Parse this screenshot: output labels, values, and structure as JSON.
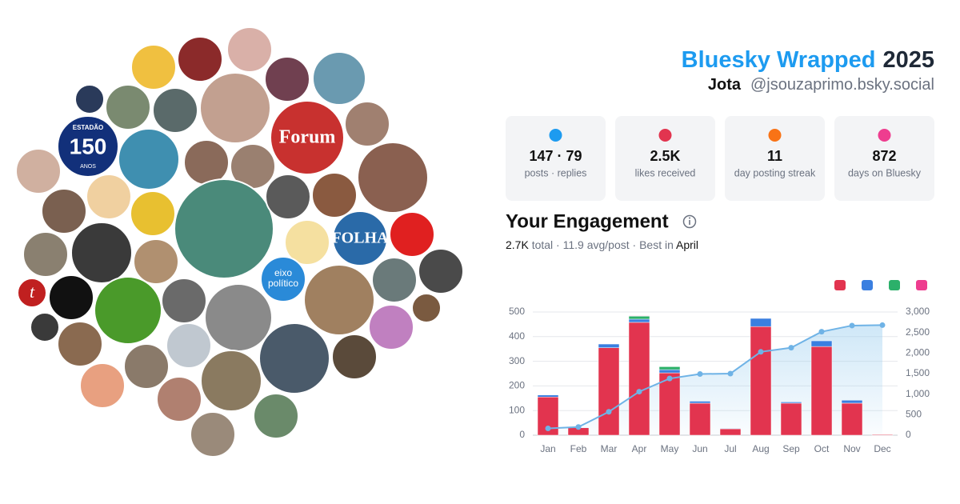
{
  "header": {
    "title": "Bluesky Wrapped",
    "year": "2025",
    "name": "Jota",
    "handle": "@jsouzaprimo.bsky.social"
  },
  "avatar_labels": {
    "estadao": "ESTADÃO",
    "estadao_number": "150",
    "estadao_sub": "ANOS",
    "forum": "Forum",
    "folha": "FOLHA",
    "eixo": "eixo",
    "politico": "político",
    "t": "t"
  },
  "stats": [
    {
      "value": "147 · 79",
      "label": "posts · replies"
    },
    {
      "value": "2.5K",
      "label": "likes received"
    },
    {
      "value": "11",
      "label": "day posting streak"
    },
    {
      "value": "872",
      "label": "days on Bluesky"
    }
  ],
  "engagement": {
    "heading": "Your Engagement",
    "total": "2.7K",
    "total_label": "total · 11.9 avg/post · Best in",
    "best": "April"
  },
  "chart_data": {
    "type": "bar",
    "stacked": true,
    "grid": true,
    "categories": [
      "Jan",
      "Feb",
      "Mar",
      "Apr",
      "May",
      "Jun",
      "Jul",
      "Aug",
      "Sep",
      "Oct",
      "Nov",
      "Dec"
    ],
    "series": [
      {
        "color": "#e2344f",
        "values": [
          155,
          30,
          355,
          458,
          253,
          130,
          26,
          441,
          130,
          360,
          130,
          3
        ]
      },
      {
        "color": "#3a7fe0",
        "values": [
          8,
          2,
          15,
          13,
          13,
          8,
          2,
          33,
          5,
          23,
          12,
          0
        ]
      },
      {
        "color": "#2cb06a",
        "values": [
          0,
          0,
          0,
          12,
          12,
          0,
          0,
          0,
          0,
          0,
          0,
          0
        ]
      },
      {
        "color": "#ee3d8f",
        "values": [
          0,
          0,
          0,
          2,
          0,
          0,
          0,
          0,
          0,
          0,
          0,
          0
        ]
      },
      {
        "type": "line",
        "axis": "y2",
        "color": "#6fb3e6",
        "values": [
          165,
          200,
          570,
          1060,
          1380,
          1490,
          1500,
          2030,
          2130,
          2520,
          2670,
          2680
        ]
      }
    ],
    "ylim": [
      0,
      500
    ],
    "yticks": [
      0,
      100,
      200,
      300,
      400,
      500
    ],
    "y2lim": [
      0,
      3000
    ],
    "y2ticks": [
      0,
      500,
      {
        "value": 1000,
        "label": "1,000"
      },
      {
        "value": 1500,
        "label": "1,500"
      },
      {
        "value": 2000,
        "label": "2,000"
      },
      {
        "value": 2500,
        "label": "2,500"
      },
      {
        "value": 3000,
        "label": "3,000"
      }
    ]
  }
}
